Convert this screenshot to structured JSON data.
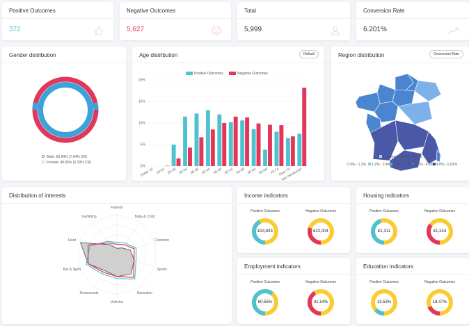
{
  "colors": {
    "teal": "#4fc1cf",
    "red": "#e2365a",
    "yellow": "#fbcc32",
    "gray": "#c8c8c8",
    "blue_dark": "#4a59a7",
    "blue_mid": "#4a86d0",
    "blue_light": "#7cb1ea"
  },
  "kpis": [
    {
      "title": "Positive Outcomes",
      "value": "372",
      "color": "#4fc1cf",
      "icon": "thumbs-up-icon"
    },
    {
      "title": "Negative Outcomes",
      "value": "5,627",
      "color": "#e2365a",
      "icon": "sad-face-icon"
    },
    {
      "title": "Total",
      "value": "5,999",
      "color": "#333333",
      "icon": "user-icon"
    },
    {
      "title": "Conversion Rate",
      "value": "6.201%",
      "color": "#333333",
      "icon": "trend-up-icon"
    }
  ],
  "gender": {
    "title": "Gender distribution",
    "legend_male": "Male: 50.94% (7.04% CR)",
    "legend_female": "Female: 49.06% (5.33% CR)"
  },
  "age": {
    "title": "Age distribution",
    "button": "Default"
  },
  "region": {
    "title": "Region distribution",
    "button": "Conversion Rate",
    "unknown": "Unknown regions: 5.25%",
    "legend": [
      "0% - 1.2%",
      "1.2% - 2.4%",
      "2.4% - 3.6%",
      "3.6% - 4.8%",
      "4.8% - 6.02%"
    ]
  },
  "interests": {
    "title": "Distribution of interests",
    "axes": [
      "Fashion",
      "Baby & Child",
      "Cosmetic",
      "Sports",
      "Education",
      "Vehicles",
      "Restaurants",
      "Bar & Spirit",
      "Food",
      "Gambling"
    ],
    "grey": [
      0.15,
      0.2,
      0.35,
      0.45,
      0.6,
      0.55,
      0.5,
      0.75,
      0.95,
      0.3
    ],
    "teal": [
      0.3,
      0.35,
      0.5,
      0.5,
      0.75,
      0.6,
      0.6,
      0.8,
      0.7,
      0.4
    ],
    "red": [
      0.25,
      0.3,
      0.45,
      0.45,
      0.7,
      0.55,
      0.55,
      0.75,
      0.75,
      0.35
    ]
  },
  "income": {
    "title": "Income indicators",
    "pos_label": "Positive Outcomes",
    "neg_label": "Negative Outcomes",
    "pos_val": "€24,833",
    "neg_val": "€22,004",
    "pos_frac": 0.42,
    "neg_frac": 0.3
  },
  "housing": {
    "title": "Housing indicators",
    "pos_label": "Positive Outcomes",
    "neg_label": "Negative Outcomes",
    "pos_val": "€1,311",
    "neg_val": "€1,244",
    "pos_frac": 0.45,
    "neg_frac": 0.35
  },
  "employment": {
    "title": "Employment indicators",
    "pos_label": "Positive Outcomes",
    "neg_label": "Negative Outcomes",
    "pos_val": "60.55%",
    "neg_val": "41.14%",
    "pos_frac": 0.6055,
    "neg_frac": 0.4114
  },
  "education": {
    "title": "Education indicators",
    "pos_label": "Positive Outcomes",
    "neg_label": "Negative Outcomes",
    "pos_val": "13.53%",
    "neg_val": "18.47%",
    "pos_frac": 0.1353,
    "neg_frac": 0.1847
  },
  "chart_data": {
    "type": "bar",
    "title": "Age distribution",
    "categories": [
      "Under 18",
      "18-24",
      "25-29",
      "30-34",
      "35-39",
      "40-44",
      "45-49",
      "50-54",
      "55-59",
      "60-64",
      "65-69",
      "70-74",
      "Over 75",
      "Not mentioned"
    ],
    "series": [
      {
        "name": "Positive Outcomes",
        "values": [
          0,
          0,
          5,
          11.5,
          12.2,
          13,
          12,
          10.2,
          10.6,
          8.6,
          3.8,
          8,
          6.5,
          7.5
        ]
      },
      {
        "name": "Negative Outcomes",
        "values": [
          0,
          0.1,
          1.8,
          4.3,
          6.7,
          8.5,
          10,
          11.5,
          11.3,
          9.9,
          9.6,
          9.5,
          6.9,
          18.2
        ]
      }
    ],
    "yticks": [
      "0%",
      "5%",
      "10%",
      "15%",
      "20%"
    ],
    "ylim": [
      0,
      20
    ]
  }
}
